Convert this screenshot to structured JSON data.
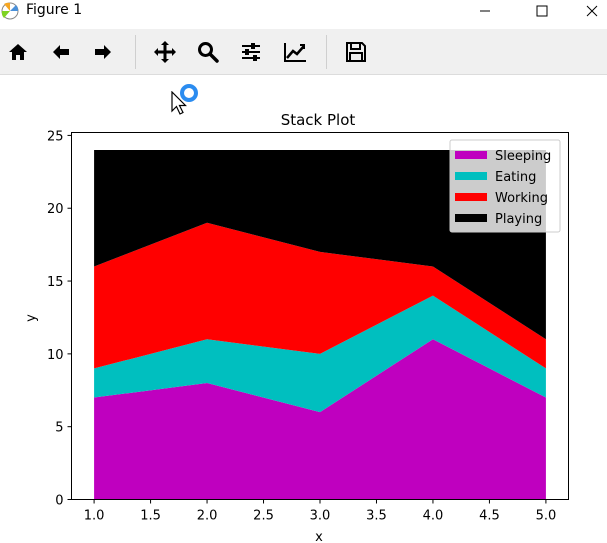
{
  "window": {
    "title": "Figure 1"
  },
  "icons": {
    "app": "matplotlib-icon",
    "minimize": "minimize-icon",
    "maximize": "maximize-icon",
    "close": "close-icon"
  },
  "toolbar": {
    "buttons": [
      {
        "name": "home",
        "icon": "home-icon"
      },
      {
        "name": "back",
        "icon": "arrow-left-icon"
      },
      {
        "name": "forward",
        "icon": "arrow-right-icon"
      },
      {
        "name": "pan",
        "icon": "move-icon"
      },
      {
        "name": "zoom",
        "icon": "magnifier-icon"
      },
      {
        "name": "subplots",
        "icon": "sliders-icon"
      },
      {
        "name": "customize",
        "icon": "line-chart-icon"
      },
      {
        "name": "save",
        "icon": "floppy-icon"
      }
    ]
  },
  "colors": {
    "sleeping": "#bf00bf",
    "eating": "#00bfbf",
    "working": "#ff0000",
    "playing": "#000000"
  },
  "chart_data": {
    "type": "area",
    "stacked": true,
    "title": "Stack Plot",
    "xlabel": "x",
    "ylabel": "y",
    "x": [
      1,
      2,
      3,
      4,
      5
    ],
    "series": [
      {
        "name": "Sleeping",
        "values": [
          7,
          8,
          6,
          11,
          7
        ],
        "color": "#bf00bf"
      },
      {
        "name": "Eating",
        "values": [
          2,
          3,
          4,
          3,
          2
        ],
        "color": "#00bfbf"
      },
      {
        "name": "Working",
        "values": [
          7,
          8,
          7,
          2,
          2
        ],
        "color": "#ff0000"
      },
      {
        "name": "Playing",
        "values": [
          8,
          5,
          7,
          8,
          13
        ],
        "color": "#000000"
      }
    ],
    "xlim": [
      0.8,
      5.2
    ],
    "ylim": [
      0,
      25.2
    ],
    "xticks": [
      "1.0",
      "1.5",
      "2.0",
      "2.5",
      "3.0",
      "3.5",
      "4.0",
      "4.5",
      "5.0"
    ],
    "yticks": [
      "0",
      "5",
      "10",
      "15",
      "20",
      "25"
    ],
    "legend_position": "top-right",
    "grid": false
  }
}
